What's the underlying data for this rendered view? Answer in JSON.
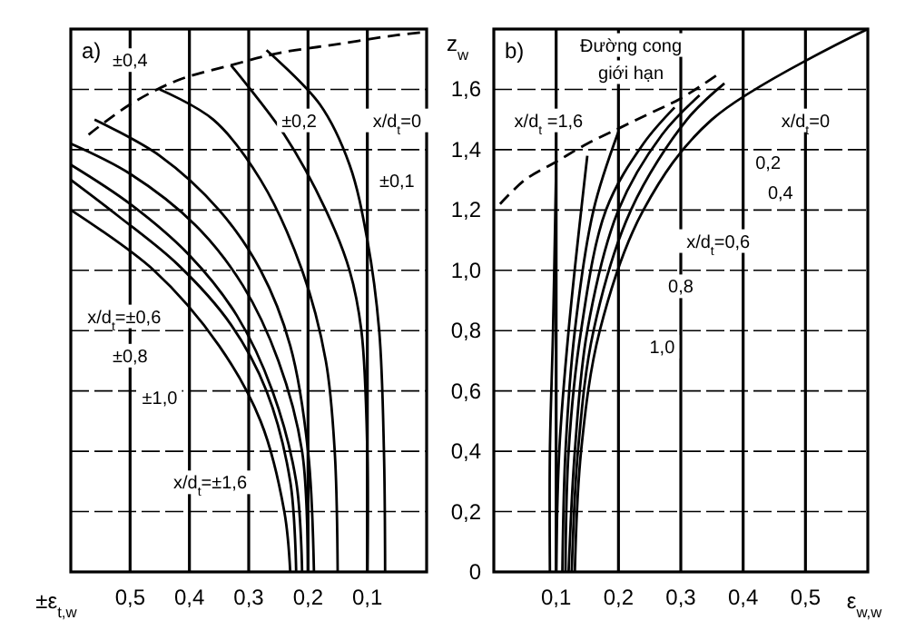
{
  "chart_data": [
    {
      "type": "line",
      "title": "a)",
      "xlabel": "±ε$_{t,w}$",
      "xlim": [
        0.6,
        0
      ],
      "ylim": [
        0,
        1.8
      ],
      "xticks": [
        {
          "value": 0.5,
          "label": "0,5"
        },
        {
          "value": 0.4,
          "label": "0,4"
        },
        {
          "value": 0.3,
          "label": "0,3"
        },
        {
          "value": 0.2,
          "label": "0,2"
        },
        {
          "value": 0.1,
          "label": "0,1"
        }
      ],
      "yticks": [
        {
          "value": 0,
          "label": null
        },
        {
          "value": 0.2,
          "label": null
        },
        {
          "value": 0.4,
          "label": null
        },
        {
          "value": 0.6,
          "label": null
        },
        {
          "value": 0.8,
          "label": null
        },
        {
          "value": 1.0,
          "label": null
        },
        {
          "value": 1.2,
          "label": null
        },
        {
          "value": 1.4,
          "label": null
        },
        {
          "value": 1.6,
          "label": null
        }
      ],
      "tick_labels": "x",
      "grid": true,
      "marker": "none",
      "series": [
        {
          "color": "#000000",
          "x": [
            0.07,
            0.072,
            0.08,
            0.1,
            0.13,
            0.18,
            0.27
          ],
          "values": [
            0,
            0.4,
            0.8,
            1.1,
            1.35,
            1.55,
            1.73
          ]
        },
        {
          "color": "#000000",
          "x": [
            0.1,
            0.1,
            0.11,
            0.13,
            0.17,
            0.24,
            0.33
          ],
          "values": [
            0,
            0.4,
            0.8,
            1.0,
            1.2,
            1.45,
            1.68
          ]
        },
        {
          "color": "#000000",
          "x": [
            0.15,
            0.155,
            0.17,
            0.21,
            0.28,
            0.36,
            0.45
          ],
          "values": [
            0,
            0.4,
            0.7,
            1.0,
            1.3,
            1.5,
            1.6
          ]
        },
        {
          "color": "#000000",
          "x": [
            0.19,
            0.2,
            0.23,
            0.28,
            0.35,
            0.45,
            0.56
          ],
          "values": [
            0,
            0.4,
            0.75,
            1.0,
            1.2,
            1.38,
            1.5
          ]
        },
        {
          "color": "#000000",
          "x": [
            0.2,
            0.21,
            0.25,
            0.31,
            0.39,
            0.5,
            0.6
          ],
          "values": [
            0,
            0.4,
            0.7,
            0.95,
            1.15,
            1.32,
            1.42
          ]
        },
        {
          "color": "#000000",
          "x": [
            0.21,
            0.22,
            0.26,
            0.32,
            0.4,
            0.5,
            0.6
          ],
          "values": [
            0,
            0.3,
            0.6,
            0.85,
            1.05,
            1.22,
            1.35
          ]
        },
        {
          "color": "#000000",
          "x": [
            0.22,
            0.23,
            0.27,
            0.33,
            0.42,
            0.52,
            0.6
          ],
          "values": [
            0,
            0.3,
            0.6,
            0.82,
            1.02,
            1.18,
            1.3
          ]
        },
        {
          "color": "#000000",
          "x": [
            0.23,
            0.24,
            0.28,
            0.35,
            0.46,
            0.6
          ],
          "values": [
            0,
            0.2,
            0.5,
            0.75,
            1.0,
            1.2
          ]
        },
        {
          "color": "#000000",
          "line_style": "dashed",
          "x": [
            0.57,
            0.5,
            0.42,
            0.33,
            0.25,
            0.15,
            0.05,
            0.0
          ],
          "values": [
            1.45,
            1.55,
            1.63,
            1.68,
            1.72,
            1.75,
            1.78,
            1.79
          ]
        }
      ],
      "annotations": [
        "x/d$_{t}$=0",
        "±0,1",
        "±0,2",
        "±0,4",
        "x/d$_{t}$=±0,6",
        "±0,8",
        "±1,0",
        "x/d$_{t}$=±1,6"
      ]
    },
    {
      "type": "line",
      "title": "b)",
      "xlabel": "ε$_{w,w}$",
      "ylabel": "z$_{w}$",
      "xlim": [
        0,
        0.6
      ],
      "ylim": [
        0,
        1.8
      ],
      "xticks": [
        {
          "value": 0.1,
          "label": "0,1"
        },
        {
          "value": 0.2,
          "label": "0,2"
        },
        {
          "value": 0.3,
          "label": "0,3"
        },
        {
          "value": 0.4,
          "label": "0,4"
        },
        {
          "value": 0.5,
          "label": "0,5"
        }
      ],
      "yticks": [
        {
          "value": 0,
          "label": "0"
        },
        {
          "value": 0.2,
          "label": "0,2"
        },
        {
          "value": 0.4,
          "label": "0,4"
        },
        {
          "value": 0.6,
          "label": "0,6"
        },
        {
          "value": 0.8,
          "label": "0,8"
        },
        {
          "value": 1.0,
          "label": "1,0"
        },
        {
          "value": 1.2,
          "label": "1,2"
        },
        {
          "value": 1.4,
          "label": "1,4"
        },
        {
          "value": 1.6,
          "label": "1,6"
        }
      ],
      "grid": true,
      "marker": "none",
      "series": [
        {
          "color": "#000000",
          "x": [
            0.13,
            0.14,
            0.17,
            0.24,
            0.35,
            0.6
          ],
          "values": [
            0,
            0.4,
            0.8,
            1.2,
            1.5,
            1.8
          ]
        },
        {
          "color": "#000000",
          "x": [
            0.125,
            0.135,
            0.16,
            0.22,
            0.31,
            0.37
          ],
          "values": [
            0,
            0.4,
            0.8,
            1.2,
            1.5,
            1.62
          ]
        },
        {
          "color": "#000000",
          "x": [
            0.12,
            0.13,
            0.15,
            0.2,
            0.27,
            0.33
          ],
          "values": [
            0,
            0.4,
            0.8,
            1.2,
            1.45,
            1.58
          ]
        },
        {
          "color": "#000000",
          "x": [
            0.115,
            0.12,
            0.14,
            0.18,
            0.24,
            0.29
          ],
          "values": [
            0,
            0.4,
            0.8,
            1.2,
            1.42,
            1.54
          ]
        },
        {
          "color": "#000000",
          "x": [
            0.11,
            0.115,
            0.13,
            0.16,
            0.2
          ],
          "values": [
            0,
            0.4,
            0.8,
            1.2,
            1.46
          ]
        },
        {
          "color": "#000000",
          "x": [
            0.1,
            0.105,
            0.12,
            0.15
          ],
          "values": [
            0,
            0.4,
            0.8,
            1.38
          ]
        },
        {
          "color": "#000000",
          "x": [
            0.09,
            0.09,
            0.095,
            0.1
          ],
          "values": [
            0,
            0.4,
            0.8,
            1.34
          ]
        },
        {
          "color": "#000000",
          "line_style": "dashed",
          "x": [
            0.01,
            0.05,
            0.1,
            0.15,
            0.2,
            0.25,
            0.3,
            0.36
          ],
          "values": [
            1.22,
            1.3,
            1.36,
            1.42,
            1.47,
            1.52,
            1.57,
            1.65
          ]
        }
      ],
      "annotations": [
        "Đường cong",
        "giới hạn",
        "x/d$_{t}$ =1,6",
        "x/d$_{t}$=0",
        "0,2",
        "0,4",
        "x/d$_{t}$=0,6",
        "0,8",
        "1,0"
      ]
    }
  ]
}
